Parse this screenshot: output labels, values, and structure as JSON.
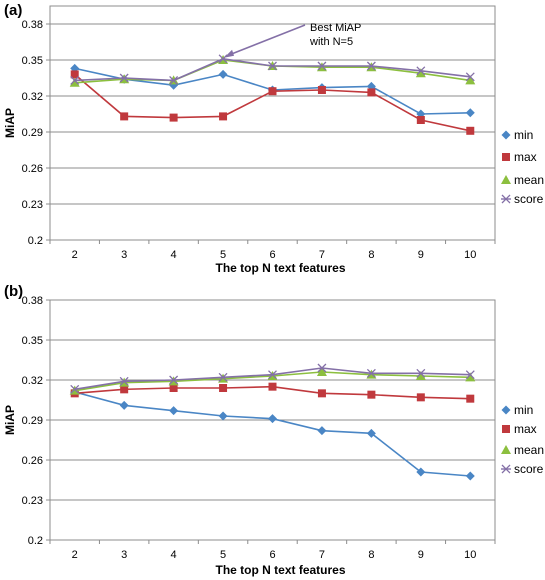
{
  "chart_data": [
    {
      "type": "line",
      "panel": "(a)",
      "xlabel": "The top N text features",
      "ylabel": "MiAP",
      "categories": [
        "2",
        "3",
        "4",
        "5",
        "6",
        "7",
        "8",
        "9",
        "10"
      ],
      "yticks": [
        "0.2",
        "0.23",
        "0.26",
        "0.29",
        "0.32",
        "0.35",
        "0.38"
      ],
      "ylim": [
        0.2,
        0.395
      ],
      "grid": "horizontal",
      "legend": "right",
      "series": [
        {
          "name": "min",
          "color": "#4a86c5",
          "marker": "diamond",
          "values": [
            0.343,
            0.334,
            0.329,
            0.338,
            0.325,
            0.327,
            0.328,
            0.305,
            0.306
          ]
        },
        {
          "name": "max",
          "color": "#c0393d",
          "marker": "square",
          "values": [
            0.338,
            0.303,
            0.302,
            0.303,
            0.324,
            0.325,
            0.323,
            0.3,
            0.291
          ]
        },
        {
          "name": "mean",
          "color": "#8cbf3f",
          "marker": "triangle",
          "values": [
            0.331,
            0.334,
            0.333,
            0.35,
            0.345,
            0.344,
            0.344,
            0.339,
            0.333
          ]
        },
        {
          "name": "score",
          "color": "#8470a7",
          "marker": "cross",
          "values": [
            0.333,
            0.335,
            0.333,
            0.351,
            0.345,
            0.345,
            0.345,
            0.341,
            0.336
          ]
        }
      ],
      "annotation": {
        "lines": [
          "Best MiAP",
          "with N=5"
        ],
        "target_category": "5",
        "target_value": 0.351
      }
    },
    {
      "type": "line",
      "panel": "(b)",
      "xlabel": "The top N text features",
      "ylabel": "MiAP",
      "categories": [
        "2",
        "3",
        "4",
        "5",
        "6",
        "7",
        "8",
        "9",
        "10"
      ],
      "yticks": [
        "0.2",
        "0.23",
        "0.26",
        "0.29",
        "0.32",
        "0.35",
        "0.38"
      ],
      "ylim": [
        0.2,
        0.38
      ],
      "grid": "horizontal",
      "legend": "right",
      "series": [
        {
          "name": "min",
          "color": "#4a86c5",
          "marker": "diamond",
          "values": [
            0.311,
            0.301,
            0.297,
            0.293,
            0.291,
            0.282,
            0.28,
            0.251,
            0.248
          ]
        },
        {
          "name": "max",
          "color": "#c0393d",
          "marker": "square",
          "values": [
            0.31,
            0.313,
            0.314,
            0.314,
            0.315,
            0.31,
            0.309,
            0.307,
            0.306
          ]
        },
        {
          "name": "mean",
          "color": "#8cbf3f",
          "marker": "triangle",
          "values": [
            0.312,
            0.318,
            0.319,
            0.321,
            0.323,
            0.326,
            0.324,
            0.323,
            0.322
          ]
        },
        {
          "name": "score",
          "color": "#8470a7",
          "marker": "cross",
          "values": [
            0.313,
            0.319,
            0.32,
            0.322,
            0.324,
            0.329,
            0.325,
            0.325,
            0.324
          ]
        }
      ]
    }
  ]
}
